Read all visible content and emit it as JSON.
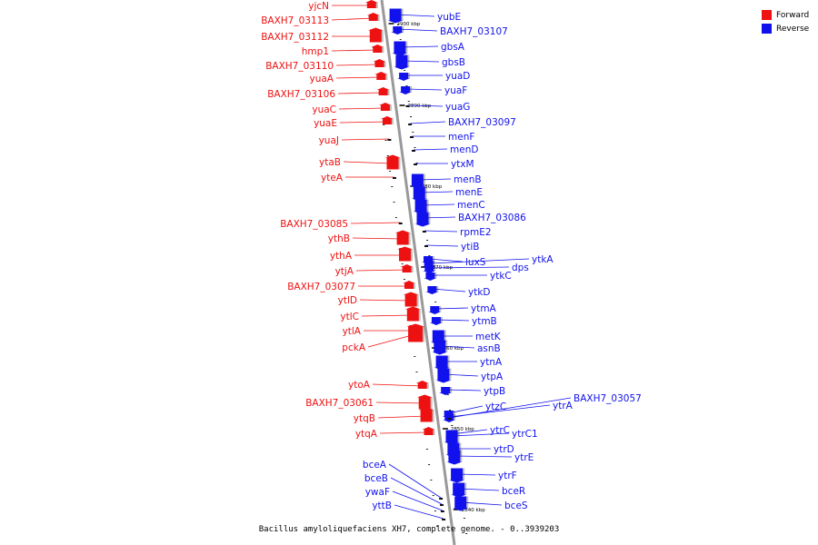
{
  "colors": {
    "forward": "#ee1111",
    "reverse": "#1111ee",
    "backbone": "#999999",
    "ticks": "#222222"
  },
  "legend": [
    {
      "label": "Forward",
      "color": "#ee1111"
    },
    {
      "label": "Reverse",
      "color": "#1111ee"
    }
  ],
  "caption": "Bacillus amyloliquefaciens XH7, complete genome. - 0..3939203",
  "kbp_labels": [
    "2900 kbp",
    "2890 kbp",
    "2880 kbp",
    "2870 kbp",
    "2860 kbp",
    "2850 kbp",
    "2840 kbp"
  ],
  "forward_genes": [
    "yjcN",
    "BAXH7_03113",
    "BAXH7_03112",
    "hmp1",
    "BAXH7_03110",
    "yuaA",
    "BAXH7_03106",
    "yuaC",
    "yuaE",
    "yuaJ",
    "ytaB",
    "yteA",
    "BAXH7_03085",
    "ythB",
    "ythA",
    "ytjA",
    "BAXH7_03077",
    "ytlD",
    "ytlC",
    "ytlA",
    "pckA",
    "ytoA",
    "BAXH7_03061",
    "ytqB",
    "ytqA"
  ],
  "reverse_genes": [
    "yubE",
    "BAXH7_03107",
    "gbsA",
    "gbsB",
    "yuaD",
    "yuaF",
    "yuaG",
    "BAXH7_03097",
    "menF",
    "menD",
    "ytxM",
    "menB",
    "menE",
    "menC",
    "BAXH7_03086",
    "rpmE2",
    "ytiB",
    "luxS",
    "ytkA",
    "dps",
    "ytkC",
    "ytkD",
    "ytmA",
    "ytmB",
    "metK",
    "asnB",
    "ytnA",
    "ytpA",
    "ytpB",
    "ytzC",
    "ytrA",
    "BAXH7_03057",
    "ytrC",
    "ytrC1",
    "ytrD",
    "ytrE",
    "ytrF",
    "bceR",
    "bceS",
    "bceA",
    "bceB",
    "ywaF",
    "yttB"
  ]
}
